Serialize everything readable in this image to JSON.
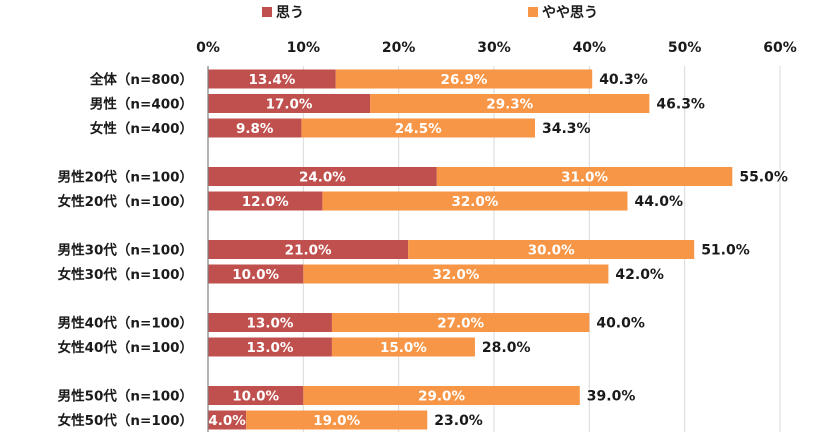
{
  "chart_data": {
    "type": "bar",
    "orientation": "horizontal",
    "stacked": true,
    "title": "",
    "xlabel": "",
    "ylabel": "",
    "xlim": [
      0,
      60
    ],
    "x_ticks": [
      0,
      10,
      20,
      30,
      40,
      50,
      60
    ],
    "x_tick_labels": [
      "0%",
      "10%",
      "20%",
      "30%",
      "40%",
      "50%",
      "60%"
    ],
    "grid": true,
    "legend_position": "top",
    "colors": {
      "series_1": "#c0504d",
      "series_2": "#f79646",
      "grid": "#d9d9d9",
      "axis": "#808080"
    },
    "series": [
      {
        "name": "思う",
        "color": "#c0504d",
        "values": [
          13.4,
          17.0,
          9.8,
          24.0,
          12.0,
          21.0,
          10.0,
          13.0,
          13.0,
          10.0,
          4.0
        ],
        "labels": [
          "13.4%",
          "17.0%",
          "9.8%",
          "24.0%",
          "12.0%",
          "21.0%",
          "10.0%",
          "13.0%",
          "13.0%",
          "10.0%",
          "4.0%"
        ]
      },
      {
        "name": "やや思う",
        "color": "#f79646",
        "values": [
          26.9,
          29.3,
          24.5,
          31.0,
          32.0,
          30.0,
          32.0,
          27.0,
          15.0,
          29.0,
          19.0
        ],
        "labels": [
          "26.9%",
          "29.3%",
          "24.5%",
          "31.0%",
          "32.0%",
          "30.0%",
          "32.0%",
          "27.0%",
          "15.0%",
          "29.0%",
          "19.0%"
        ]
      }
    ],
    "categories": [
      "全体（n=800）",
      "男性（n=400）",
      "女性（n=400）",
      "男性20代（n=100）",
      "女性20代（n=100）",
      "男性30代（n=100）",
      "女性30代（n=100）",
      "男性40代（n=100）",
      "女性40代（n=100）",
      "男性50代（n=100）",
      "女性50代（n=100）"
    ],
    "group_index": [
      0,
      0,
      0,
      1,
      1,
      2,
      2,
      3,
      3,
      4,
      4
    ],
    "totals": [
      40.3,
      46.3,
      34.3,
      55.0,
      44.0,
      51.0,
      42.0,
      40.0,
      28.0,
      39.0,
      23.0
    ],
    "total_labels": [
      "40.3%",
      "46.3%",
      "34.3%",
      "55.0%",
      "44.0%",
      "51.0%",
      "42.0%",
      "40.0%",
      "28.0%",
      "39.0%",
      "23.0%"
    ]
  }
}
